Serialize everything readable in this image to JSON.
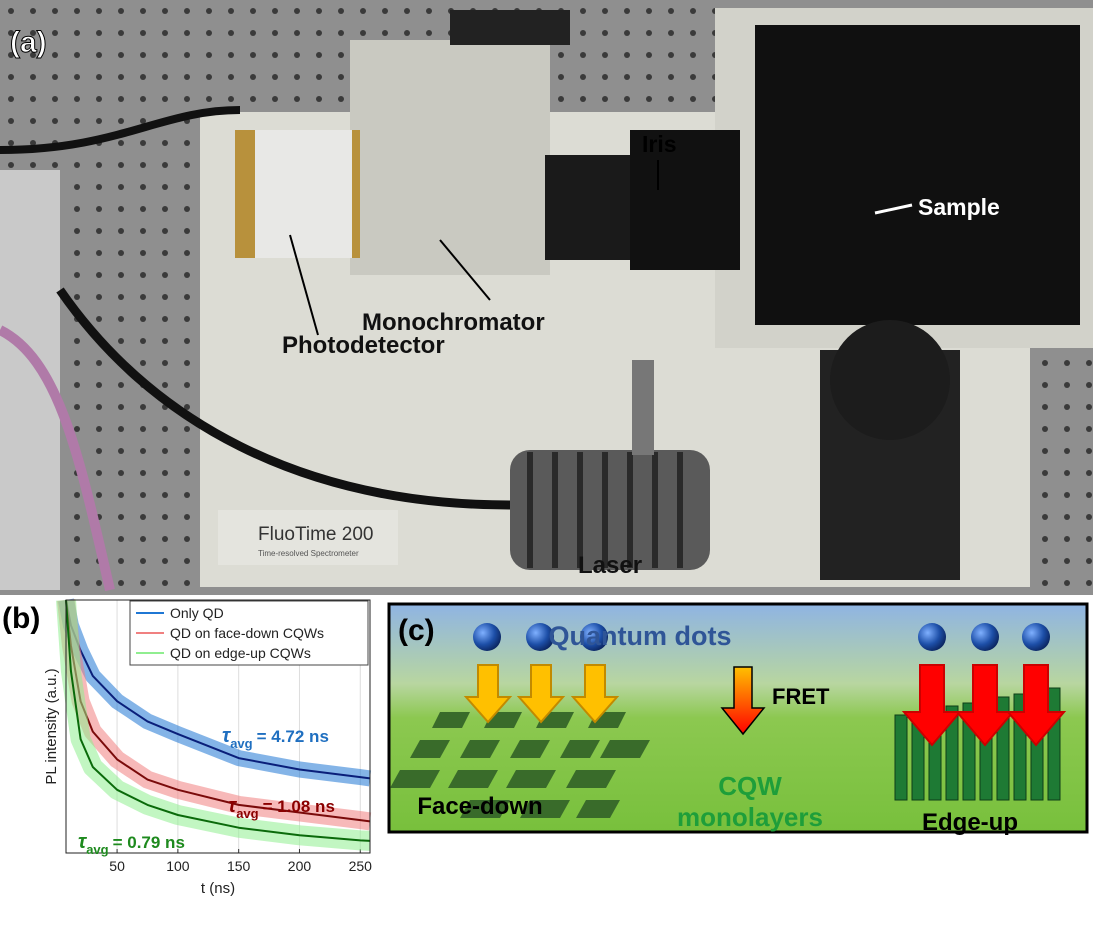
{
  "panel_a": {
    "label": "(a)",
    "callouts": {
      "iris": "Iris",
      "sample": "Sample",
      "monochromator": "Monochromator",
      "photodetector": "Photodetector",
      "laser": "Laser"
    },
    "device_text": {
      "brand": "FluoTime 200",
      "subtitle": "Time-resolved Spectrometer"
    }
  },
  "chart_data": {
    "type": "line",
    "panel_label": "(b)",
    "x_label": "t (ns)",
    "y_label": "PL intensity (a.u.)",
    "xlim": [
      8,
      258
    ],
    "ylim": [
      0,
      1
    ],
    "xticks": [
      50,
      100,
      150,
      200,
      250
    ],
    "grid": true,
    "legend_position": "upper right",
    "x": [
      8,
      12,
      20,
      30,
      50,
      75,
      100,
      150,
      200,
      250,
      258
    ],
    "series": [
      {
        "name": "Only QD",
        "color": "#1f77d4",
        "fit_color": "#0a1f7a",
        "values": [
          1.0,
          0.9,
          0.8,
          0.7,
          0.6,
          0.52,
          0.47,
          0.375,
          0.33,
          0.3,
          0.295
        ]
      },
      {
        "name": "QD on face-down CQWs",
        "color": "#f08080",
        "fit_color": "#7a0a0a",
        "values": [
          1.0,
          0.82,
          0.6,
          0.48,
          0.37,
          0.29,
          0.25,
          0.19,
          0.16,
          0.13,
          0.125
        ]
      },
      {
        "name": "QD on edge-up CQWs",
        "color": "#90ee90",
        "fit_color": "#0a6a0a",
        "values": [
          1.0,
          0.72,
          0.45,
          0.34,
          0.25,
          0.19,
          0.15,
          0.1,
          0.07,
          0.05,
          0.048
        ]
      }
    ],
    "annotations": [
      {
        "symbol": "τ",
        "subscript": "avg",
        "text": "= 4.72 ns",
        "color": "#1f6fc0"
      },
      {
        "symbol": "τ",
        "subscript": "avg",
        "text": "= 1.08 ns",
        "color": "#8b0000"
      },
      {
        "symbol": "τ",
        "subscript": "avg",
        "text": "= 0.79 ns",
        "color": "#1e8a1e"
      }
    ]
  },
  "panel_c": {
    "label": "(c)",
    "quantum_dots": "Quantum dots",
    "fret": "FRET",
    "cqw": "CQW",
    "monolayers": "monolayers",
    "face_down": "Face-down",
    "edge_up": "Edge-up"
  }
}
